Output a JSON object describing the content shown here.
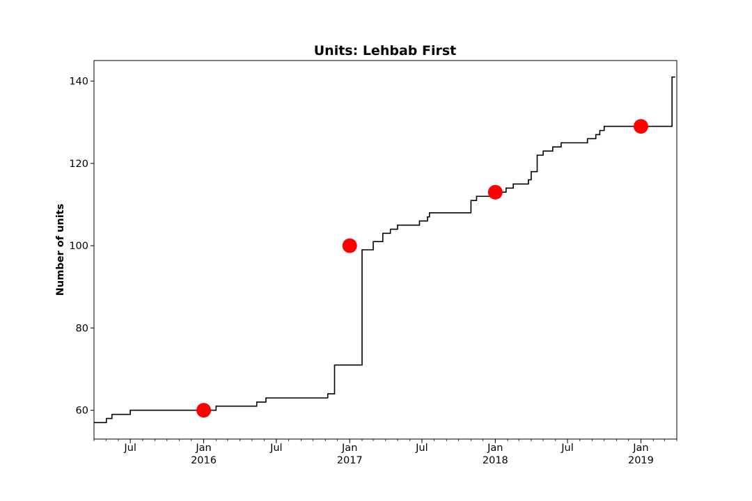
{
  "chart_data": {
    "type": "line",
    "title": "Units: Lehbab First",
    "xlabel": "",
    "ylabel": "Number of units",
    "xlim": [
      "2015-04-01",
      "2019-04-01"
    ],
    "ylim": [
      53,
      145
    ],
    "grid": false,
    "y_ticks": [
      60,
      80,
      100,
      120,
      140
    ],
    "x_ticks": [
      {
        "date": "2015-07-01",
        "label": "Jul",
        "sublabel": ""
      },
      {
        "date": "2016-01-01",
        "label": "Jan",
        "sublabel": "2016"
      },
      {
        "date": "2016-07-01",
        "label": "Jul",
        "sublabel": ""
      },
      {
        "date": "2017-01-01",
        "label": "Jan",
        "sublabel": "2017"
      },
      {
        "date": "2017-07-01",
        "label": "Jul",
        "sublabel": ""
      },
      {
        "date": "2018-01-01",
        "label": "Jan",
        "sublabel": "2018"
      },
      {
        "date": "2018-07-01",
        "label": "Jul",
        "sublabel": ""
      },
      {
        "date": "2019-01-01",
        "label": "Jan",
        "sublabel": "2019"
      }
    ],
    "series": [
      {
        "type": "step",
        "color": "#000000",
        "x": [
          "2015-04-01",
          "2015-05-02",
          "2015-05-16",
          "2015-07-01",
          "2016-02-01",
          "2016-05-13",
          "2016-06-05",
          "2016-11-07",
          "2016-11-24",
          "2017-02-01",
          "2017-03-01",
          "2017-03-25",
          "2017-04-13",
          "2017-05-01",
          "2017-06-25",
          "2017-07-15",
          "2017-07-20",
          "2017-11-01",
          "2017-11-15",
          "2018-01-10",
          "2018-01-28",
          "2018-02-15",
          "2018-03-25",
          "2018-04-01",
          "2018-04-16",
          "2018-05-01",
          "2018-05-25",
          "2018-06-15",
          "2018-08-20",
          "2018-09-10",
          "2018-09-20",
          "2018-10-01",
          "2019-03-20",
          "2019-03-28"
        ],
        "y": [
          57,
          58,
          59,
          60,
          61,
          62,
          63,
          64,
          71,
          99,
          101,
          103,
          104,
          105,
          106,
          107,
          108,
          111,
          112,
          113,
          114,
          115,
          116,
          118,
          122,
          123,
          124,
          125,
          126,
          127,
          128,
          129,
          141,
          141
        ]
      },
      {
        "type": "scatter",
        "color": "#ff0000",
        "x": [
          "2016-01-01",
          "2017-01-01",
          "2018-01-01",
          "2019-01-01"
        ],
        "y": [
          60,
          100,
          113,
          129
        ]
      }
    ]
  }
}
